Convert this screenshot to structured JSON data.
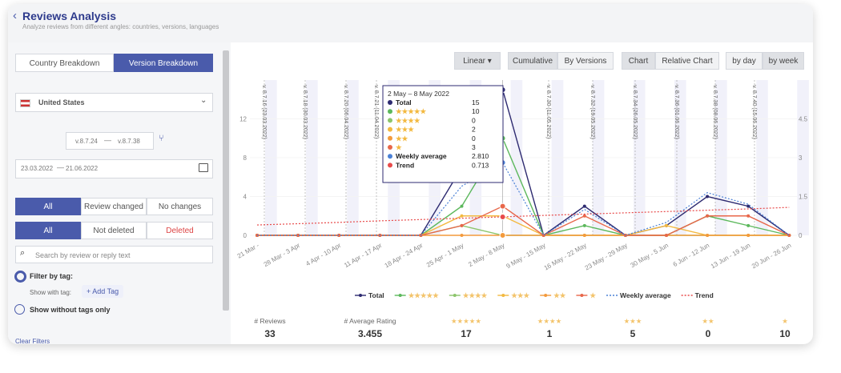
{
  "header": {
    "title": "Reviews Analysis",
    "subtitle": "Analyze reviews from different angles: countries, versions, languages"
  },
  "sidebar": {
    "tabs": [
      "Country Breakdown",
      "Version Breakdown"
    ],
    "country": "United States",
    "version_from": "v.8.7.24",
    "version_to": "v.8.7.38",
    "date_from": "23.03.2022",
    "date_to": "21.06.2022",
    "change_filter": [
      "All",
      "Review changed",
      "No changes"
    ],
    "delete_filter": [
      "All",
      "Not deleted",
      "Deleted"
    ],
    "search_placeholder": "Search by review or reply text",
    "filter_by_tag": "Filter by tag:",
    "show_with_tag": "Show with tag:",
    "add_tag": "+ Add Tag",
    "without_tags": "Show without tags only",
    "clear_filters": "Clear Filters"
  },
  "toolbar": {
    "scale": "Linear",
    "modes": [
      "Cumulative",
      "By Versions"
    ],
    "views": [
      "Chart",
      "Relative Chart"
    ],
    "periods": [
      "by day",
      "by week"
    ]
  },
  "chart_data": {
    "type": "line",
    "categories": [
      "21 Mar -",
      "28 Mar - 3 Apr",
      "4 Apr - 10 Apr",
      "11 Apr - 17 Apr",
      "18 Apr - 24 Apr",
      "25 Apr - 1 May",
      "2 May - 8 May",
      "9 May - 15 May",
      "16 May - 22 May",
      "23 May - 29 May",
      "30 May - 5 Jun",
      "6 Jun - 12 Jun",
      "13 Jun - 19 Jun",
      "20 Jun - 26 Jun"
    ],
    "ylim": [
      0,
      16
    ],
    "yticks": [
      0,
      4,
      8,
      12
    ],
    "y2lim": [
      0,
      6
    ],
    "y2ticks": [
      0,
      1.5,
      3,
      4.5
    ],
    "series": [
      {
        "name": "Total",
        "color": "#2d2a70",
        "values": [
          0,
          0,
          0,
          0,
          0,
          7,
          15,
          0,
          3,
          0,
          1,
          4,
          3,
          0
        ]
      },
      {
        "name": "★★★★★",
        "color": "#5cb85c",
        "values": [
          0,
          0,
          0,
          0,
          0,
          3,
          10,
          0,
          1,
          0,
          0,
          2,
          1,
          0
        ]
      },
      {
        "name": "★★★★",
        "color": "#8cc56b",
        "values": [
          0,
          0,
          0,
          0,
          0,
          1,
          0,
          0,
          0,
          0,
          0,
          0,
          0,
          0
        ]
      },
      {
        "name": "★★★",
        "color": "#f3b940",
        "values": [
          0,
          0,
          0,
          0,
          0,
          2,
          2,
          0,
          0,
          0,
          1,
          0,
          0,
          0
        ]
      },
      {
        "name": "★★",
        "color": "#f39a3c",
        "values": [
          0,
          0,
          0,
          0,
          0,
          0,
          0,
          0,
          0,
          0,
          0,
          0,
          0,
          0
        ]
      },
      {
        "name": "★",
        "color": "#e8674a",
        "values": [
          0,
          0,
          0,
          0,
          0,
          1,
          3,
          0,
          2,
          0,
          0,
          2,
          2,
          0
        ]
      },
      {
        "name": "Weekly average",
        "color": "#4a80d6",
        "axis": "y2",
        "dash": true,
        "values": [
          0,
          0,
          0,
          0,
          0,
          1.9,
          2.81,
          0,
          1.0,
          0,
          0.5,
          1.65,
          1.2,
          0
        ],
        "value_labels": [
          null,
          null,
          null,
          null,
          null,
          null,
          "2.810",
          null,
          null,
          null,
          null,
          null,
          null,
          null
        ]
      },
      {
        "name": "Trend",
        "color": "#e84b4b",
        "axis": "y2",
        "dash": true,
        "values": [
          0.4,
          0.45,
          0.5,
          0.56,
          0.61,
          0.66,
          0.713,
          0.77,
          0.82,
          0.87,
          0.92,
          0.97,
          1.02,
          1.08
        ]
      }
    ],
    "annotations": [
      "v. 8.7.16 (23.03.2022)",
      "v. 8.7.18 (30.03.2022)",
      "v. 8.7.20 (06.04.2022)",
      "v. 8.7.21 (11.04.2022)",
      "v. 8.7.30 (11.05.2022)",
      "v. 8.7.32 (19.05.2022)",
      "v. 8.7.34 (26.05.2022)",
      "v. 8.7.36 (01.06.2022)",
      "v. 8.7.38 (08.06.2022)",
      "v. 8.7.40 (15.06.2022)"
    ],
    "tooltip_title": "2 May – 8 May 2022"
  },
  "summary": [
    {
      "label": "# Reviews",
      "value": "33"
    },
    {
      "label": "# Average Rating",
      "value": "3.455"
    },
    {
      "label": "★★★★★",
      "value": "17"
    },
    {
      "label": "★★★★",
      "value": "1"
    },
    {
      "label": "★★★",
      "value": "5"
    },
    {
      "label": "★★",
      "value": "0"
    },
    {
      "label": "★",
      "value": "10"
    }
  ]
}
